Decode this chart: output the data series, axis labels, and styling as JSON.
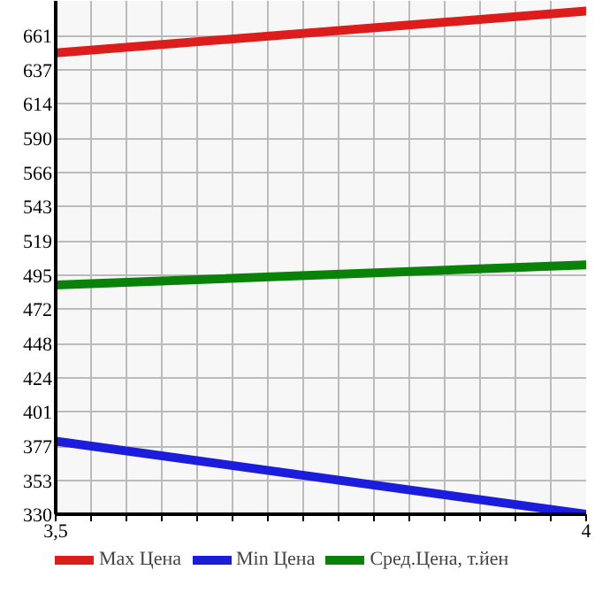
{
  "chart_data": {
    "type": "line",
    "x": [
      3.5,
      4
    ],
    "series": [
      {
        "name": "Max Цена",
        "color": "#dd1c1c",
        "values": [
          649,
          678
        ]
      },
      {
        "name": "Min Цена",
        "color": "#1c1cdd",
        "values": [
          380.5,
          330
        ]
      },
      {
        "name": "Сред.Цена, т.йен",
        "color": "#0a820a",
        "values": [
          488.5,
          502.5
        ]
      }
    ],
    "xlim": [
      3.5,
      4
    ],
    "ylim": [
      330,
      685
    ],
    "xticks": [
      {
        "value": 3.5,
        "label": "3,5"
      },
      {
        "value": 3.5333,
        "label": null
      },
      {
        "value": 3.5667,
        "label": null
      },
      {
        "value": 3.6,
        "label": null
      },
      {
        "value": 3.6333,
        "label": null
      },
      {
        "value": 3.6667,
        "label": null
      },
      {
        "value": 3.7,
        "label": null
      },
      {
        "value": 3.7333,
        "label": null
      },
      {
        "value": 3.7667,
        "label": null
      },
      {
        "value": 3.8,
        "label": null
      },
      {
        "value": 3.8333,
        "label": null
      },
      {
        "value": 3.8667,
        "label": null
      },
      {
        "value": 3.9,
        "label": null
      },
      {
        "value": 3.9333,
        "label": null
      },
      {
        "value": 3.9667,
        "label": null
      },
      {
        "value": 4,
        "label": "4"
      }
    ],
    "yticks": [
      330,
      353,
      377,
      401,
      424,
      448,
      472,
      495,
      519,
      543,
      566,
      590,
      614,
      637,
      661
    ],
    "grid": true,
    "legend": "bottom",
    "marker": "none",
    "line_style": "solid"
  }
}
